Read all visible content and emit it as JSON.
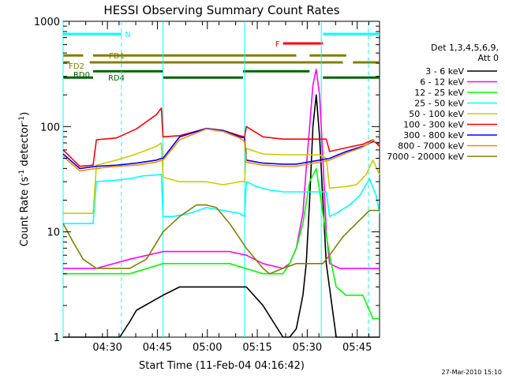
{
  "chart_data": {
    "type": "line",
    "title": "HESSI Observing Summary Count Rates",
    "xlabel": "Start Time (11-Feb-04 04:16:42)",
    "ylabel": "Count Rate (s",
    "ylabel_sup": "-1",
    "ylabel_tail": " detector",
    "ylabel_end": ")",
    "x_minutes_range": [
      0,
      95
    ],
    "x_ticks": [
      {
        "t": 13.3,
        "label": "04:30"
      },
      {
        "t": 28.3,
        "label": "04:45"
      },
      {
        "t": 43.3,
        "label": "05:00"
      },
      {
        "t": 58.3,
        "label": "05:15"
      },
      {
        "t": 73.3,
        "label": "05:30"
      },
      {
        "t": 88.3,
        "label": "05:45"
      }
    ],
    "y_scale": "log",
    "ylim": [
      1,
      1000
    ],
    "y_ticks": [
      {
        "v": 1,
        "label": "1"
      },
      {
        "v": 10,
        "label": "10"
      },
      {
        "v": 100,
        "label": "100"
      },
      {
        "v": 1000,
        "label": "1000"
      }
    ],
    "legend_title": "Det 1,3,4,5,6,9,",
    "legend_subtitle": "Att 0",
    "legend_placement": "right",
    "series": [
      {
        "name": "3 - 6 keV",
        "color": "#000000",
        "x": [
          0,
          17,
          20,
          22,
          30,
          35,
          45,
          55,
          60,
          66,
          68,
          70,
          72,
          73,
          74,
          75,
          76,
          77,
          79,
          82,
          85,
          90,
          95
        ],
        "y": [
          1,
          1,
          1.4,
          1.8,
          2.5,
          3,
          3,
          3,
          2,
          1,
          1,
          1.2,
          2.5,
          5,
          20,
          100,
          200,
          80,
          5,
          1,
          1,
          1,
          1
        ]
      },
      {
        "name": "6 - 12 keV",
        "color": "#ff00ff",
        "x": [
          0,
          10,
          20,
          30,
          40,
          50,
          55,
          60,
          66,
          68,
          70,
          72,
          73,
          74,
          75,
          76,
          77,
          78,
          79,
          80,
          83,
          90,
          95
        ],
        "y": [
          4.5,
          4.5,
          5.5,
          6.5,
          6.5,
          6.5,
          6,
          5,
          4.5,
          5,
          7,
          15,
          40,
          100,
          250,
          350,
          200,
          50,
          10,
          5,
          4.5,
          4.5,
          4.5
        ]
      },
      {
        "name": "12 - 25 keV",
        "color": "#00ff00",
        "x": [
          0,
          10,
          20,
          30,
          40,
          50,
          60,
          66,
          68,
          70,
          72,
          74,
          76,
          78,
          80,
          82,
          85,
          90,
          93,
          95
        ],
        "y": [
          4,
          4,
          4,
          5,
          5,
          5,
          4,
          4,
          5,
          7,
          12,
          30,
          40,
          15,
          6,
          3,
          2.5,
          2.5,
          1.5,
          1.5
        ]
      },
      {
        "name": "25 - 50 keV",
        "color": "#00ffff",
        "x": [
          0,
          9,
          10,
          16,
          20,
          24,
          29.5,
          30,
          33,
          38,
          43,
          48,
          53,
          54.5,
          55,
          58,
          62,
          66,
          70,
          73,
          77,
          79,
          80,
          82,
          86,
          89,
          92,
          94,
          95
        ],
        "y": [
          12,
          12,
          30,
          31,
          32,
          34,
          35,
          14,
          14,
          15,
          17,
          16,
          15,
          14,
          30,
          27,
          25,
          24,
          24,
          24,
          24,
          24,
          14,
          15,
          18,
          22,
          32,
          22,
          15
        ]
      },
      {
        "name": "50 - 100 keV",
        "color": "#cccc00",
        "x": [
          0,
          9,
          10,
          16,
          22,
          28,
          29.5,
          30,
          35,
          43,
          48,
          53,
          54.5,
          55,
          60,
          66,
          70,
          77,
          79,
          80,
          85,
          88,
          91,
          93,
          95
        ],
        "y": [
          15,
          15,
          43,
          48,
          55,
          65,
          70,
          33,
          30,
          30,
          28,
          30,
          30,
          62,
          55,
          54,
          54,
          54,
          50,
          26,
          27,
          28,
          35,
          48,
          35
        ]
      },
      {
        "name": "100 - 300 keV",
        "color": "#ff0000",
        "x": [
          0,
          5,
          9,
          10,
          16,
          22,
          28,
          29.5,
          30,
          35,
          43,
          48,
          53,
          54.5,
          55,
          60,
          66,
          70,
          77,
          79,
          80,
          85,
          90,
          93,
          95
        ],
        "y": [
          60,
          42,
          43,
          75,
          78,
          95,
          130,
          150,
          80,
          82,
          96,
          92,
          82,
          80,
          100,
          80,
          76,
          76,
          76,
          76,
          58,
          63,
          68,
          75,
          65
        ]
      },
      {
        "name": "300 - 800 keV",
        "color": "#0000ff",
        "x": [
          0,
          5,
          10,
          16,
          22,
          28,
          29.5,
          30,
          35,
          43,
          48,
          53,
          54.5,
          55,
          60,
          66,
          70,
          77,
          80,
          85,
          90,
          93,
          95
        ],
        "y": [
          55,
          40,
          42,
          43,
          45,
          48,
          50,
          50,
          80,
          96,
          92,
          80,
          78,
          48,
          45,
          44,
          44,
          48,
          50,
          58,
          65,
          72,
          70
        ]
      },
      {
        "name": "800 - 7000 keV",
        "color": "#ff8c00",
        "x": [
          0,
          5,
          10,
          16,
          22,
          28,
          29.5,
          30,
          35,
          43,
          48,
          53,
          54.5,
          55,
          60,
          66,
          70,
          77,
          80,
          85,
          90,
          93,
          95
        ],
        "y": [
          52,
          38,
          40,
          42,
          43,
          46,
          48,
          48,
          75,
          95,
          90,
          78,
          72,
          46,
          43,
          42,
          42,
          46,
          48,
          56,
          64,
          74,
          68
        ]
      },
      {
        "name": "7000 - 20000 keV",
        "color": "#808000",
        "x": [
          0,
          3,
          6,
          10,
          15,
          20,
          25,
          30,
          35,
          40,
          43,
          46,
          50,
          55,
          60,
          62,
          66,
          70,
          75,
          78,
          80,
          84,
          88,
          92,
          95
        ],
        "y": [
          12,
          8,
          5.5,
          4.5,
          4.5,
          4.5,
          5.5,
          10,
          14,
          18,
          18,
          17,
          12,
          7,
          4.5,
          4,
          4.5,
          5,
          5,
          5,
          6,
          9,
          12,
          16,
          16
        ]
      }
    ],
    "annotations": {
      "flags": [
        {
          "label": "N",
          "color": "#00ffff",
          "segments": [
            [
              0,
              17.5
            ],
            [
              78,
              95
            ]
          ],
          "y_frac": 0.04
        },
        {
          "label": "F",
          "color": "#ff0000",
          "segments": [
            [
              66,
              78
            ]
          ],
          "y_frac": 0.07
        },
        {
          "label": "FD1",
          "color": "#808000",
          "segments": [
            [
              0,
              6
            ],
            [
              9,
              70
            ],
            [
              74,
              85
            ]
          ],
          "y_frac": 0.108
        },
        {
          "label": "FD2",
          "color": "#808000",
          "segments": [
            [
              0,
              2
            ],
            [
              8,
              84
            ],
            [
              87,
              95
            ]
          ],
          "y_frac": 0.13
        },
        {
          "label": "RD0",
          "color": "#006400",
          "segments": [
            [
              9,
              30
            ],
            [
              54,
              74
            ]
          ],
          "y_frac": 0.158
        },
        {
          "label": "RD4",
          "color": "#006400",
          "segments": [
            [
              0,
              9
            ],
            [
              30,
              54
            ],
            [
              78,
              95
            ]
          ],
          "y_frac": 0.178
        }
      ],
      "vlines_solid": [
        0,
        30,
        54.5,
        77.5
      ],
      "vlines_dashed": [
        17.5,
        95
      ]
    },
    "stamp": "27-Mar-2010 15:10"
  }
}
